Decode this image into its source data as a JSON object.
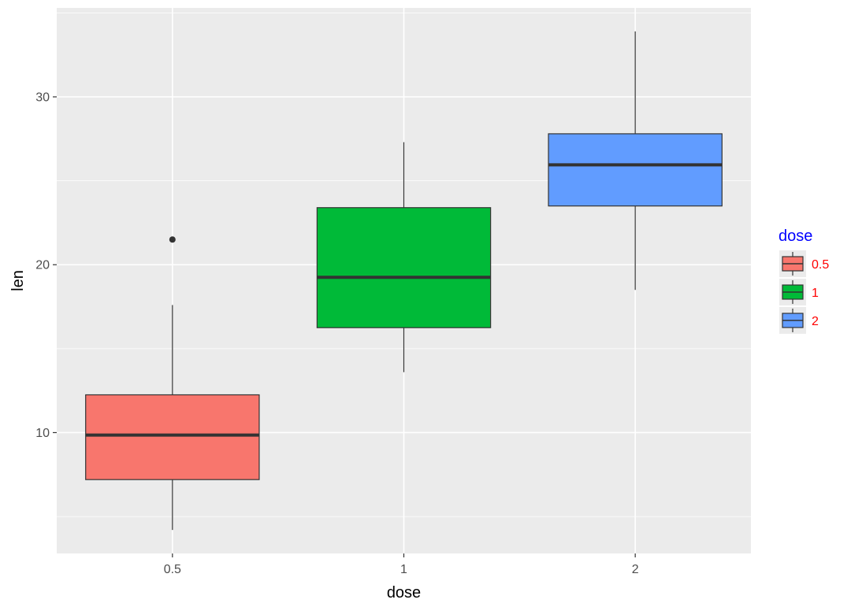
{
  "chart_data": {
    "type": "boxplot",
    "xlabel": "dose",
    "ylabel": "len",
    "ylim": [
      2.8,
      35.3
    ],
    "y_ticks": [
      10,
      20,
      30
    ],
    "y_tick_labels": [
      "10",
      "20",
      "30"
    ],
    "y_minor_ticks": [
      5,
      15,
      25,
      35
    ],
    "categories": [
      "0.5",
      "1",
      "2"
    ],
    "boxes": [
      {
        "category": "0.5",
        "whisker_low": 4.2,
        "q1": 7.2,
        "median": 9.85,
        "q3": 12.25,
        "whisker_high": 17.6,
        "outliers": [
          21.5
        ],
        "color": "#F8766D"
      },
      {
        "category": "1",
        "whisker_low": 13.6,
        "q1": 16.25,
        "median": 19.25,
        "q3": 23.4,
        "whisker_high": 27.3,
        "outliers": [],
        "color": "#00BA38"
      },
      {
        "category": "2",
        "whisker_low": 18.5,
        "q1": 23.5,
        "median": 25.95,
        "q3": 27.8,
        "whisker_high": 33.9,
        "outliers": [],
        "color": "#619CFF"
      }
    ],
    "grid": true,
    "panel_background": "#EBEBEB",
    "grid_color": "#FFFFFF",
    "box_outline_color": "#333333",
    "legend": {
      "title": "dose",
      "title_color": "#0000FF",
      "label_color": "#FF0000",
      "placement": "right",
      "entries": [
        {
          "label": "0.5",
          "color": "#F8766D"
        },
        {
          "label": "1",
          "color": "#00BA38"
        },
        {
          "label": "2",
          "color": "#619CFF"
        }
      ]
    }
  }
}
